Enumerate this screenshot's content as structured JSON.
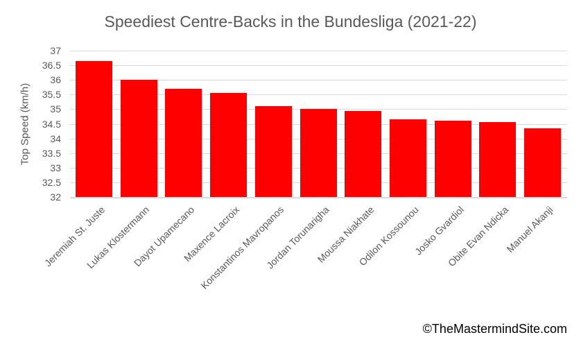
{
  "title": "Speediest Centre-Backs in the Bundesliga (2021-22)",
  "watermark": "©TheMastermindSite.com",
  "colors": {
    "bar": "#ff0000",
    "gridline": "#d9d9d9",
    "axis_text": "#595959",
    "title_text": "#595959",
    "watermark_text": "#000000",
    "background": "#ffffff"
  },
  "chart_data": {
    "type": "bar",
    "title": "Speediest Centre-Backs in the Bundesliga (2021-22)",
    "xlabel": "",
    "ylabel": "Top Speed (km/h)",
    "categories": [
      "Jeremiah St. Juste",
      "Lukas Klostermann",
      "Dayot Upamecano",
      "Maxence Lacroix",
      "Konstantinos Mavropanos",
      "Jordan Torunarigha",
      "Moussa Niakhate",
      "Odilon Kossounou",
      "Josko Gvardiol",
      "Obite Evan Ndicka",
      "Manuel Akanji"
    ],
    "values": [
      36.65,
      36.0,
      35.7,
      35.55,
      35.1,
      35.0,
      34.93,
      34.66,
      34.6,
      34.55,
      34.35
    ],
    "ylim": [
      32,
      37
    ],
    "ytick_step": 0.5,
    "ytick_labels": [
      "37",
      "36.5",
      "36",
      "35.5",
      "35",
      "34.5",
      "34",
      "33.5",
      "33",
      "32.5",
      "32"
    ],
    "grid": true,
    "legend": "none",
    "bar_color": "#ff0000"
  }
}
